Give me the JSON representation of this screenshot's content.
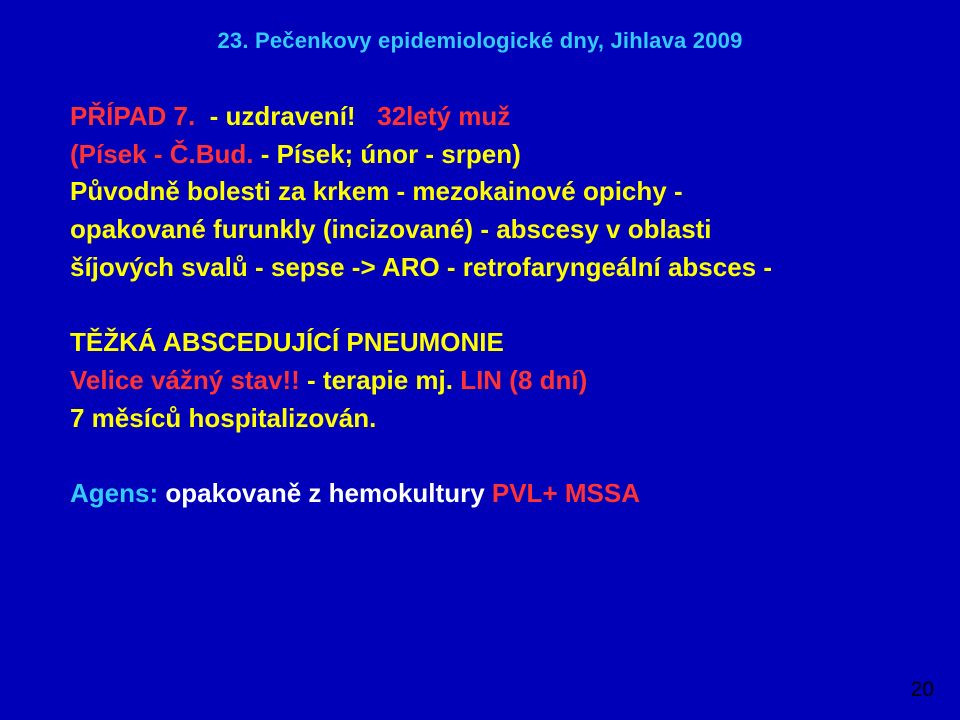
{
  "slide": {
    "background_color": "#0000b8",
    "header": {
      "text": "23. Pečenkovy epidemiologické dny, Jihlava 2009",
      "color": "#33ccff",
      "fontsize": 22
    },
    "body_fontsize": 26,
    "line_height": 1.45,
    "colors": {
      "yellow": "#ffff00",
      "red_accent": "#ff3333",
      "white": "#ffffff",
      "agens_label": "#33ccff"
    },
    "line1_a": "PŘÍPAD 7.",
    "line1_b": "  - uzdravení!   ",
    "line1_c": "32letý muž",
    "line2_a": "(Písek - Č.Bud.",
    "line2_b": " - Písek; únor - srpen)",
    "line3": "Původně bolesti za krkem - mezokainové opichy -",
    "line4": "opakované furunkly (incizované) - abscesy v oblasti",
    "line5": "šíjových svalů - sepse -> ARO - retrofaryngeální absces -",
    "line6": "TĚŽKÁ ABSCEDUJÍCÍ PNEUMONIE",
    "line7_a": "Velice vážný stav!!",
    "line7_b": " - terapie mj. ",
    "line7_c": "LIN (8 dní)",
    "line8": "7 měsíců hospitalizován.",
    "line9_a": "Agens:",
    "line9_b": " opakovaně z hemokultury ",
    "line9_c": "PVL+ MSSA",
    "page_number": "20",
    "page_number_color": "#000000",
    "page_number_fontsize": 21
  }
}
